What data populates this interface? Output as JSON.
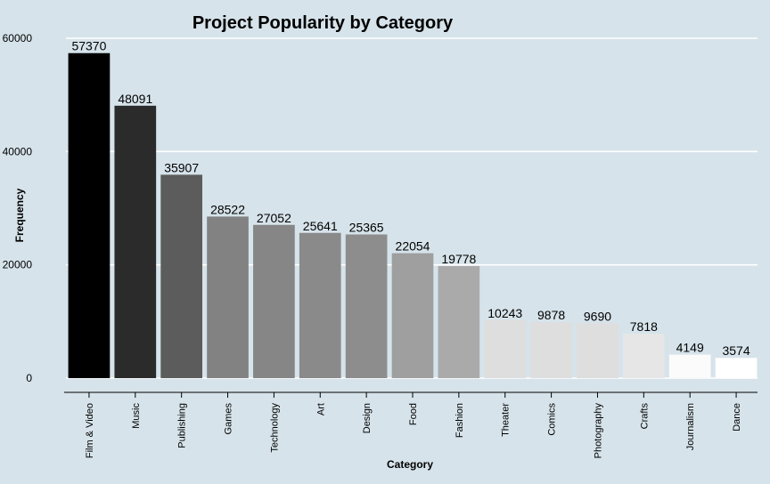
{
  "chart_data": {
    "type": "bar",
    "title": "Project Popularity by Category",
    "xlabel": "Category",
    "ylabel": "Frequency",
    "ylim": [
      0,
      62000
    ],
    "yticks": [
      0,
      20000,
      40000,
      60000
    ],
    "ytick_labels": [
      "0",
      "20000",
      "40000",
      "60000"
    ],
    "grid": "horizontal",
    "background": "#d6e3ea",
    "categories": [
      "Film & Video",
      "Music",
      "Publishing",
      "Games",
      "Technology",
      "Art",
      "Design",
      "Food",
      "Fashion",
      "Theater",
      "Comics",
      "Photography",
      "Crafts",
      "Journalism",
      "Dance"
    ],
    "values": [
      57370,
      48091,
      35907,
      28522,
      27052,
      25641,
      25365,
      22054,
      19778,
      10243,
      9878,
      9690,
      7818,
      4149,
      3574
    ],
    "data_labels": [
      "57370",
      "48091",
      "35907",
      "28522",
      "27052",
      "25641",
      "25365",
      "22054",
      "19778",
      "10243",
      "9878",
      "9690",
      "7818",
      "4149",
      "3574"
    ],
    "bar_colors": [
      "#000000",
      "#2b2b2b",
      "#5c5c5c",
      "#828282",
      "#868686",
      "#8a8a8a",
      "#8d8d8d",
      "#9f9f9f",
      "#aaaaaa",
      "#dedede",
      "#dedede",
      "#dedede",
      "#e6e6e6",
      "#fbfbfb",
      "#ffffff"
    ]
  }
}
